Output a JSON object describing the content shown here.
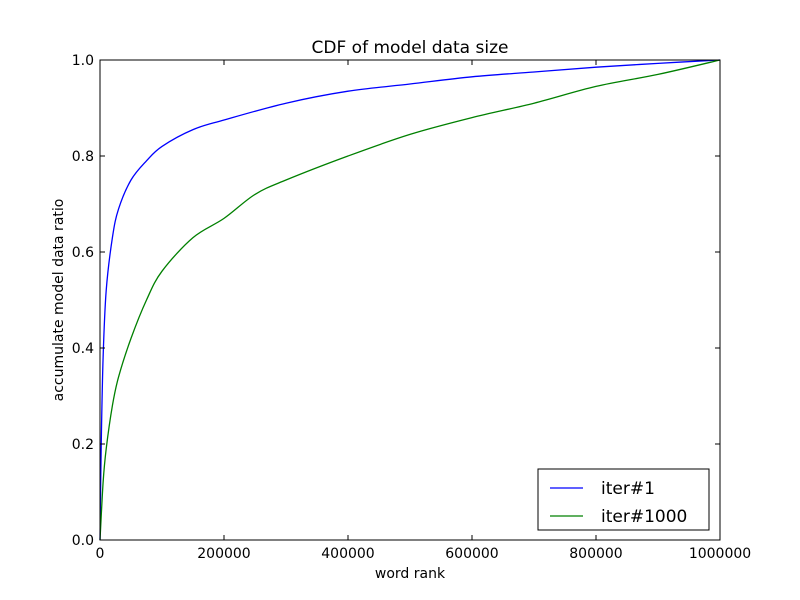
{
  "chart_data": {
    "type": "line",
    "title": "CDF of model data size",
    "xlabel": "word rank",
    "ylabel": "accumulate model data ratio",
    "xlim": [
      0,
      1000000
    ],
    "ylim": [
      0.0,
      1.0
    ],
    "xticks": [
      "0",
      "200000",
      "400000",
      "600000",
      "800000",
      "1000000"
    ],
    "xtick_values": [
      0,
      200000,
      400000,
      600000,
      800000,
      1000000
    ],
    "yticks": [
      "0.0",
      "0.2",
      "0.4",
      "0.6",
      "0.8",
      "1.0"
    ],
    "ytick_values": [
      0.0,
      0.2,
      0.4,
      0.6,
      0.8,
      1.0
    ],
    "grid": false,
    "legend_position": "bottom-right",
    "series": [
      {
        "name": "iter#1",
        "color": "#0000ff",
        "x": [
          0,
          2000,
          5000,
          10000,
          20000,
          30000,
          50000,
          75000,
          100000,
          150000,
          200000,
          300000,
          400000,
          500000,
          600000,
          700000,
          800000,
          900000,
          1000000
        ],
        "y": [
          0.0,
          0.2,
          0.38,
          0.52,
          0.63,
          0.69,
          0.75,
          0.79,
          0.82,
          0.855,
          0.875,
          0.91,
          0.935,
          0.95,
          0.965,
          0.975,
          0.985,
          0.993,
          1.0
        ]
      },
      {
        "name": "iter#1000",
        "color": "#008000",
        "x": [
          0,
          5000,
          10000,
          20000,
          30000,
          50000,
          75000,
          100000,
          150000,
          200000,
          250000,
          300000,
          400000,
          500000,
          600000,
          700000,
          800000,
          900000,
          1000000
        ],
        "y": [
          0.0,
          0.12,
          0.19,
          0.28,
          0.34,
          0.42,
          0.5,
          0.56,
          0.63,
          0.67,
          0.72,
          0.75,
          0.8,
          0.845,
          0.88,
          0.91,
          0.945,
          0.97,
          1.0
        ]
      }
    ]
  }
}
